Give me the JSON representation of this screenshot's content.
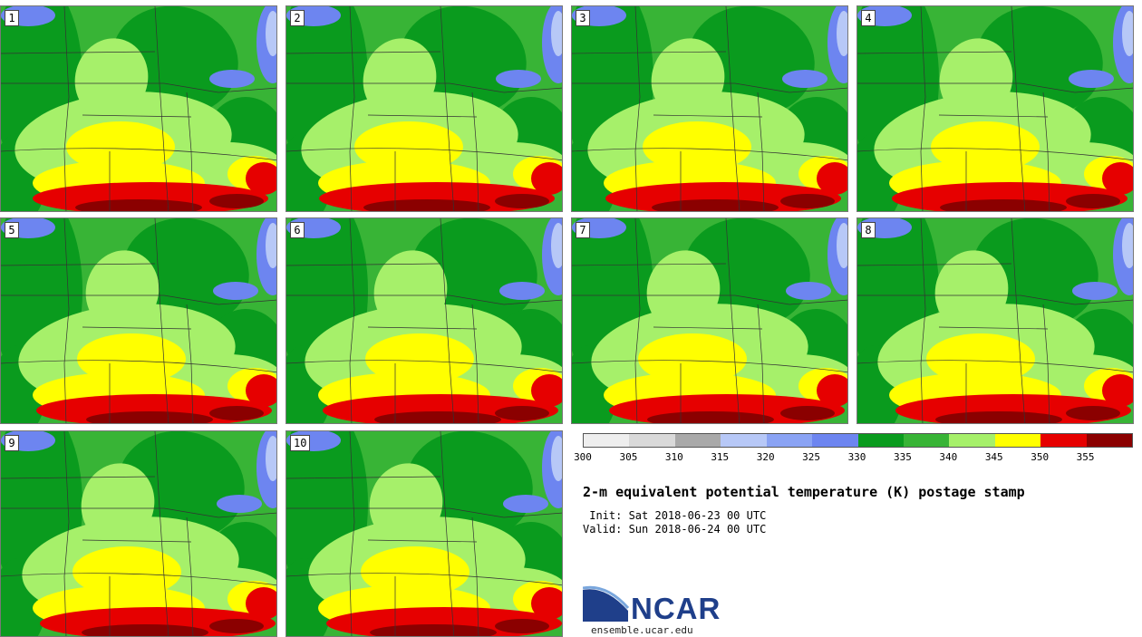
{
  "panels": [
    {
      "label": "1"
    },
    {
      "label": "2"
    },
    {
      "label": "3"
    },
    {
      "label": "4"
    },
    {
      "label": "5"
    },
    {
      "label": "6"
    },
    {
      "label": "7"
    },
    {
      "label": "8"
    },
    {
      "label": "9"
    },
    {
      "label": "10"
    }
  ],
  "colorbar": {
    "colors": [
      "#eeeeee",
      "#d9d9d9",
      "#a9a9a9",
      "#b7c8f7",
      "#8aa3f4",
      "#6d85f0",
      "#0a9b1e",
      "#38b436",
      "#a6f06a",
      "#ffff00",
      "#e60000",
      "#8b0000"
    ],
    "ticks": [
      "300",
      "305",
      "310",
      "315",
      "320",
      "325",
      "330",
      "335",
      "340",
      "345",
      "350",
      "355"
    ]
  },
  "title": "2-m equivalent potential temperature (K) postage stamp",
  "init": " Init: Sat 2018-06-23 00 UTC",
  "valid": "Valid: Sun 2018-06-24 00 UTC",
  "logo_text": "NCAR",
  "website": "ensemble.ucar.edu"
}
